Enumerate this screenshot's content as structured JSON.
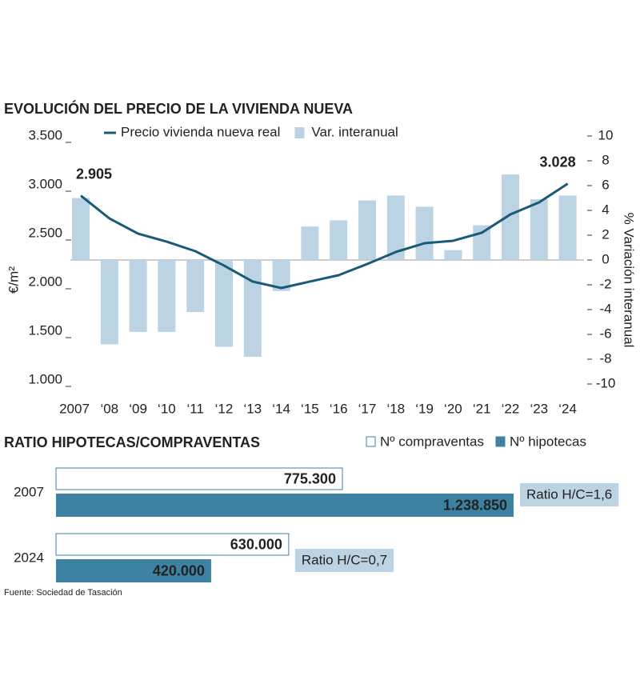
{
  "chart_data": [
    {
      "type": "bar_line",
      "title": "EVOLUCIÓN DEL PRECIO DE LA VIVIENDA NUEVA",
      "ylabel": "€/m²",
      "y2label": "% Variación interanual",
      "categories": [
        "2007",
        "‘08",
        "‘09",
        "‘10",
        "‘11",
        "‘12",
        "‘13",
        "‘14",
        "‘15",
        "‘16",
        "‘17",
        "‘18",
        "‘19",
        "‘20",
        "‘21",
        "‘22",
        "‘23",
        "‘24"
      ],
      "series": [
        {
          "name": "Precio vivienda nueva real",
          "kind": "line",
          "color": "#1a5a78",
          "values": [
            2905,
            2672,
            2516,
            2434,
            2336,
            2189,
            2025,
            1959,
            2025,
            2090,
            2205,
            2328,
            2418,
            2443,
            2525,
            2713,
            2836,
            3028
          ],
          "value_labels": [
            "2.905",
            null,
            null,
            null,
            null,
            null,
            null,
            null,
            null,
            null,
            null,
            null,
            null,
            null,
            null,
            null,
            null,
            "3.028"
          ]
        },
        {
          "name": "Var. interanual",
          "kind": "bar",
          "axis": "y2",
          "color": "#bcd3e3",
          "values": [
            5.0,
            -6.8,
            -5.8,
            -5.8,
            -4.2,
            -7.0,
            -7.8,
            -2.5,
            2.7,
            3.2,
            4.8,
            5.2,
            4.3,
            0.8,
            2.8,
            6.9,
            4.9,
            5.2
          ]
        }
      ],
      "ylim": [
        1000,
        3500
      ],
      "yticks": [
        {
          "value": 1000,
          "label": "1.000"
        },
        {
          "value": 1500,
          "label": "1.500"
        },
        {
          "value": 2000,
          "label": "2.000"
        },
        {
          "value": 2500,
          "label": "2.500"
        },
        {
          "value": 3000,
          "label": "3.000"
        },
        {
          "value": 3500,
          "label": "3.500"
        }
      ],
      "y2lim": [
        -10,
        10
      ],
      "y2ticks": [
        -10,
        -8,
        -6,
        -4,
        -2,
        0,
        2,
        4,
        6,
        8,
        10
      ]
    },
    {
      "type": "hbar",
      "title": "RATIO HIPOTECAS/COMPRAVENTAS",
      "categories": [
        "2007",
        "2024"
      ],
      "series": [
        {
          "name": "Nº compraventas",
          "color": "#ffffff",
          "values": [
            775300,
            630000
          ],
          "value_labels": [
            "775.300",
            "630.000"
          ]
        },
        {
          "name": "Nº hipotecas",
          "color": "#3d82a3",
          "values": [
            1238850,
            420000
          ],
          "value_labels": [
            "1.238.850",
            "420.000"
          ]
        }
      ],
      "ratio_labels": [
        "Ratio H/C=1,6",
        "Ratio H/C=0,7"
      ],
      "source": "Fuente: Sociedad de Tasación"
    }
  ]
}
